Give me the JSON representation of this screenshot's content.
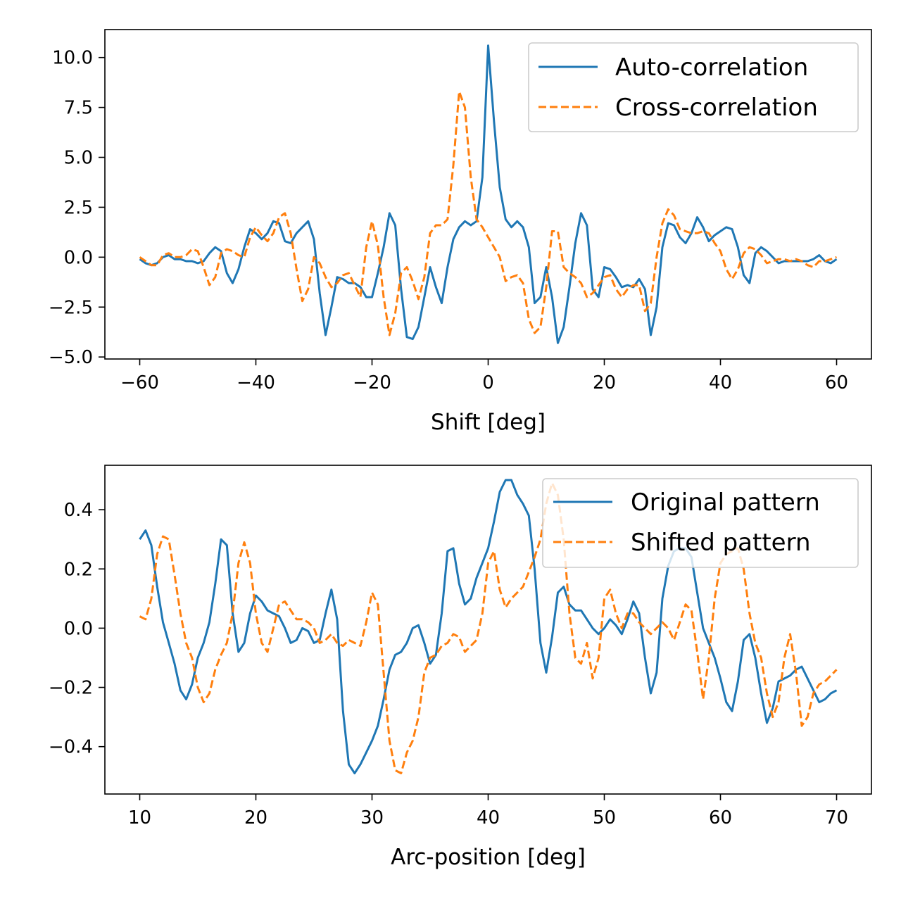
{
  "chart_data": [
    {
      "type": "line",
      "xlabel": "Shift [deg]",
      "ylabel": "",
      "xlim": [
        -66,
        66
      ],
      "ylim": [
        -5.1,
        11.4
      ],
      "xticks": [
        -60,
        -40,
        -20,
        0,
        20,
        40,
        60
      ],
      "xtick_labels": [
        "−60",
        "−40",
        "−20",
        "0",
        "20",
        "40",
        "60"
      ],
      "yticks": [
        -5.0,
        -2.5,
        0.0,
        2.5,
        5.0,
        7.5,
        10.0
      ],
      "ytick_labels": [
        "−5.0",
        "−2.5",
        "0.0",
        "2.5",
        "5.0",
        "7.5",
        "10.0"
      ],
      "grid": false,
      "legend": "top-right",
      "series": [
        {
          "name": "Auto-correlation",
          "color": "#1f77b4",
          "style": "solid",
          "x": [
            -60,
            -59,
            -58,
            -57,
            -56,
            -55,
            -54,
            -53,
            -52,
            -51,
            -50,
            -49,
            -48,
            -47,
            -46,
            -45,
            -44,
            -43,
            -42,
            -41,
            -40,
            -39,
            -38,
            -37,
            -36,
            -35,
            -34,
            -33,
            -32,
            -31,
            -30,
            -29,
            -28,
            -27,
            -26,
            -25,
            -24,
            -23,
            -22,
            -21,
            -20,
            -19,
            -18,
            -17,
            -16,
            -15,
            -14,
            -13,
            -12,
            -11,
            -10,
            -9,
            -8,
            -7,
            -6,
            -5,
            -4,
            -3,
            -2,
            -1,
            0,
            1,
            2,
            3,
            4,
            5,
            6,
            7,
            8,
            9,
            10,
            11,
            12,
            13,
            14,
            15,
            16,
            17,
            18,
            19,
            20,
            21,
            22,
            23,
            24,
            25,
            26,
            27,
            28,
            29,
            30,
            31,
            32,
            33,
            34,
            35,
            36,
            37,
            38,
            39,
            40,
            41,
            42,
            43,
            44,
            45,
            46,
            47,
            48,
            49,
            50,
            51,
            52,
            53,
            54,
            55,
            56,
            57,
            58,
            59,
            60
          ],
          "y": [
            -0.1,
            -0.3,
            -0.4,
            -0.3,
            0.0,
            0.1,
            -0.1,
            -0.1,
            -0.2,
            -0.2,
            -0.3,
            -0.2,
            0.2,
            0.5,
            0.3,
            -0.8,
            -1.3,
            -0.6,
            0.5,
            1.4,
            1.2,
            0.9,
            1.2,
            1.8,
            1.7,
            0.8,
            0.7,
            1.2,
            1.5,
            1.8,
            0.9,
            -1.8,
            -3.9,
            -2.5,
            -1.0,
            -1.1,
            -1.3,
            -1.3,
            -1.5,
            -2.0,
            -2.0,
            -0.8,
            0.5,
            2.2,
            1.6,
            -1.6,
            -4.0,
            -4.1,
            -3.5,
            -2.0,
            -0.5,
            -1.5,
            -2.3,
            -0.5,
            0.9,
            1.5,
            1.8,
            1.6,
            1.8,
            4.0,
            10.6,
            6.8,
            3.5,
            1.9,
            1.5,
            1.8,
            1.5,
            0.5,
            -2.3,
            -2.0,
            -0.5,
            -2.0,
            -4.3,
            -3.5,
            -1.5,
            0.7,
            2.2,
            1.6,
            -1.6,
            -2.0,
            -0.5,
            -0.6,
            -1.0,
            -1.5,
            -1.4,
            -1.5,
            -1.1,
            -1.6,
            -3.9,
            -2.5,
            0.5,
            1.7,
            1.6,
            1.0,
            0.7,
            1.2,
            2.0,
            1.5,
            0.8,
            1.1,
            1.3,
            1.5,
            1.4,
            0.5,
            -0.9,
            -1.3,
            0.2,
            0.5,
            0.3,
            0.0,
            -0.3,
            -0.2,
            -0.2,
            -0.2,
            -0.2,
            -0.2,
            -0.1,
            0.1,
            -0.2,
            -0.3,
            -0.1
          ]
        },
        {
          "name": "Cross-correlation",
          "color": "#ff7f0e",
          "style": "dashed",
          "x": [
            -60,
            -59,
            -58,
            -57,
            -56,
            -55,
            -54,
            -53,
            -52,
            -51,
            -50,
            -49,
            -48,
            -47,
            -46,
            -45,
            -44,
            -43,
            -42,
            -41,
            -40,
            -39,
            -38,
            -37,
            -36,
            -35,
            -34,
            -33,
            -32,
            -31,
            -30,
            -29,
            -28,
            -27,
            -26,
            -25,
            -24,
            -23,
            -22,
            -21,
            -20,
            -19,
            -18,
            -17,
            -16,
            -15,
            -14,
            -13,
            -12,
            -11,
            -10,
            -9,
            -8,
            -7,
            -6,
            -5,
            -4,
            -3,
            -2,
            -1,
            0,
            1,
            2,
            3,
            4,
            5,
            6,
            7,
            8,
            9,
            10,
            11,
            12,
            13,
            14,
            15,
            16,
            17,
            18,
            19,
            20,
            21,
            22,
            23,
            24,
            25,
            26,
            27,
            28,
            29,
            30,
            31,
            32,
            33,
            34,
            35,
            36,
            37,
            38,
            39,
            40,
            41,
            42,
            43,
            44,
            45,
            46,
            47,
            48,
            49,
            50,
            51,
            52,
            53,
            54,
            55,
            56,
            57,
            58,
            59,
            60
          ],
          "y": [
            0.0,
            -0.2,
            -0.4,
            -0.4,
            0.1,
            0.2,
            0.0,
            0.0,
            0.1,
            0.4,
            0.3,
            -0.5,
            -1.4,
            -1.0,
            0.2,
            0.4,
            0.3,
            0.1,
            0.0,
            1.0,
            1.5,
            1.1,
            0.8,
            1.2,
            2.0,
            2.2,
            1.2,
            -0.6,
            -2.2,
            -1.6,
            0.0,
            -0.3,
            -1.0,
            -1.5,
            -1.3,
            -0.9,
            -0.8,
            -1.4,
            -2.0,
            0.5,
            1.8,
            0.6,
            -2.0,
            -3.9,
            -2.8,
            -0.8,
            -0.5,
            -1.2,
            -2.1,
            -1.0,
            1.2,
            1.6,
            1.6,
            1.9,
            4.6,
            8.3,
            7.5,
            4.0,
            1.9,
            1.5,
            1.0,
            0.5,
            0.0,
            -1.2,
            -1.0,
            -0.9,
            -1.3,
            -3.1,
            -3.8,
            -3.5,
            -1.5,
            1.3,
            1.3,
            -0.5,
            -0.8,
            -1.0,
            -1.3,
            -2.0,
            -1.8,
            -1.4,
            -1.0,
            -0.9,
            -1.6,
            -2.0,
            -1.6,
            -1.4,
            -1.4,
            -2.7,
            -2.3,
            0.0,
            1.7,
            2.4,
            2.1,
            1.4,
            1.3,
            1.2,
            1.2,
            1.3,
            1.2,
            0.7,
            0.3,
            -0.6,
            -1.1,
            -0.6,
            0.2,
            0.5,
            0.4,
            0.1,
            -0.3,
            -0.2,
            -0.1,
            -0.1,
            -0.2,
            -0.1,
            -0.2,
            -0.4,
            -0.5,
            -0.2,
            -0.2,
            -0.1,
            0.0
          ]
        }
      ]
    },
    {
      "type": "line",
      "xlabel": "Arc-position [deg]",
      "ylabel": "",
      "xlim": [
        7,
        73
      ],
      "ylim": [
        -0.56,
        0.55
      ],
      "xticks": [
        10,
        20,
        30,
        40,
        50,
        60,
        70
      ],
      "xtick_labels": [
        "10",
        "20",
        "30",
        "40",
        "50",
        "60",
        "70"
      ],
      "yticks": [
        -0.4,
        -0.2,
        0.0,
        0.2,
        0.4
      ],
      "ytick_labels": [
        "−0.4",
        "−0.2",
        "0.0",
        "0.2",
        "0.4"
      ],
      "grid": false,
      "legend": "top-right",
      "series": [
        {
          "name": "Original pattern",
          "color": "#1f77b4",
          "style": "solid",
          "x": [
            10,
            10.5,
            11,
            11.5,
            12,
            12.5,
            13,
            13.5,
            14,
            14.5,
            15,
            15.5,
            16,
            16.5,
            17,
            17.5,
            18,
            18.5,
            19,
            19.5,
            20,
            20.5,
            21,
            21.5,
            22,
            22.5,
            23,
            23.5,
            24,
            24.5,
            25,
            25.5,
            26,
            26.5,
            27,
            27.5,
            28,
            28.5,
            29,
            29.5,
            30,
            30.5,
            31,
            31.5,
            32,
            32.5,
            33,
            33.5,
            34,
            34.5,
            35,
            35.5,
            36,
            36.5,
            37,
            37.5,
            38,
            38.5,
            39,
            39.5,
            40,
            40.5,
            41,
            41.5,
            42,
            42.5,
            43,
            43.5,
            44,
            44.5,
            45,
            45.5,
            46,
            46.5,
            47,
            47.5,
            48,
            48.5,
            49,
            49.5,
            50,
            50.5,
            51,
            51.5,
            52,
            52.5,
            53,
            53.5,
            54,
            54.5,
            55,
            55.5,
            56,
            56.5,
            57,
            57.5,
            58,
            58.5,
            59,
            59.5,
            60,
            60.5,
            61,
            61.5,
            62,
            62.5,
            63,
            63.5,
            64,
            64.5,
            65,
            65.5,
            66,
            66.5,
            67,
            67.5,
            68,
            68.5,
            69,
            69.5,
            70
          ],
          "y": [
            0.3,
            0.33,
            0.28,
            0.14,
            0.02,
            -0.05,
            -0.12,
            -0.21,
            -0.24,
            -0.19,
            -0.1,
            -0.05,
            0.02,
            0.15,
            0.3,
            0.28,
            0.05,
            -0.08,
            -0.05,
            0.05,
            0.11,
            0.09,
            0.06,
            0.05,
            0.04,
            0.0,
            -0.05,
            -0.04,
            0.0,
            -0.01,
            -0.05,
            -0.04,
            0.05,
            0.13,
            0.03,
            -0.28,
            -0.46,
            -0.49,
            -0.46,
            -0.42,
            -0.38,
            -0.33,
            -0.24,
            -0.14,
            -0.09,
            -0.08,
            -0.05,
            0.0,
            0.01,
            -0.05,
            -0.12,
            -0.09,
            0.05,
            0.26,
            0.27,
            0.15,
            0.08,
            0.1,
            0.17,
            0.22,
            0.27,
            0.36,
            0.46,
            0.5,
            0.5,
            0.45,
            0.42,
            0.38,
            0.2,
            -0.05,
            -0.15,
            -0.03,
            0.12,
            0.14,
            0.08,
            0.06,
            0.06,
            0.03,
            0.0,
            -0.02,
            0.0,
            0.03,
            0.01,
            -0.02,
            0.03,
            0.09,
            0.05,
            -0.1,
            -0.22,
            -0.15,
            0.1,
            0.21,
            0.26,
            0.27,
            0.27,
            0.24,
            0.12,
            0.0,
            -0.05,
            -0.1,
            -0.17,
            -0.25,
            -0.28,
            -0.18,
            -0.04,
            -0.02,
            -0.1,
            -0.22,
            -0.32,
            -0.27,
            -0.18,
            -0.17,
            -0.16,
            -0.14,
            -0.13,
            -0.17,
            -0.21,
            -0.25,
            -0.24,
            -0.22,
            -0.21
          ]
        },
        {
          "name": "Shifted pattern",
          "color": "#ff7f0e",
          "style": "dashed",
          "x": [
            10,
            10.5,
            11,
            11.5,
            12,
            12.5,
            13,
            13.5,
            14,
            14.5,
            15,
            15.5,
            16,
            16.5,
            17,
            17.5,
            18,
            18.5,
            19,
            19.5,
            20,
            20.5,
            21,
            21.5,
            22,
            22.5,
            23,
            23.5,
            24,
            24.5,
            25,
            25.5,
            26,
            26.5,
            27,
            27.5,
            28,
            28.5,
            29,
            29.5,
            30,
            30.5,
            31,
            31.5,
            32,
            32.5,
            33,
            33.5,
            34,
            34.5,
            35,
            35.5,
            36,
            36.5,
            37,
            37.5,
            38,
            38.5,
            39,
            39.5,
            40,
            40.5,
            41,
            41.5,
            42,
            42.5,
            43,
            43.5,
            44,
            44.5,
            45,
            45.5,
            46,
            46.5,
            47,
            47.5,
            48,
            48.5,
            49,
            49.5,
            50,
            50.5,
            51,
            51.5,
            52,
            52.5,
            53,
            53.5,
            54,
            54.5,
            55,
            55.5,
            56,
            56.5,
            57,
            57.5,
            58,
            58.5,
            59,
            59.5,
            60,
            60.5,
            61,
            61.5,
            62,
            62.5,
            63,
            63.5,
            64,
            64.5,
            65,
            65.5,
            66,
            66.5,
            67,
            67.5,
            68,
            68.5,
            69,
            69.5,
            70
          ],
          "y": [
            0.04,
            0.03,
            0.1,
            0.25,
            0.31,
            0.3,
            0.18,
            0.05,
            -0.05,
            -0.1,
            -0.2,
            -0.25,
            -0.22,
            -0.14,
            -0.09,
            -0.05,
            0.05,
            0.22,
            0.29,
            0.22,
            0.05,
            -0.05,
            -0.08,
            0.0,
            0.08,
            0.09,
            0.06,
            0.03,
            0.03,
            0.02,
            0.0,
            -0.05,
            -0.04,
            -0.02,
            -0.05,
            -0.06,
            -0.04,
            -0.05,
            -0.06,
            0.02,
            0.12,
            0.08,
            -0.15,
            -0.38,
            -0.48,
            -0.49,
            -0.42,
            -0.38,
            -0.3,
            -0.15,
            -0.1,
            -0.09,
            -0.06,
            -0.05,
            -0.02,
            -0.03,
            -0.08,
            -0.06,
            -0.04,
            0.05,
            0.22,
            0.26,
            0.13,
            0.07,
            0.1,
            0.12,
            0.14,
            0.19,
            0.24,
            0.3,
            0.42,
            0.49,
            0.45,
            0.3,
            0.05,
            -0.1,
            -0.12,
            -0.05,
            -0.17,
            -0.1,
            0.1,
            0.13,
            0.05,
            0.0,
            0.05,
            0.05,
            0.02,
            0.0,
            -0.02,
            0.0,
            0.02,
            0.0,
            -0.04,
            0.02,
            0.08,
            0.06,
            -0.08,
            -0.24,
            -0.1,
            0.1,
            0.22,
            0.25,
            0.26,
            0.27,
            0.2,
            0.05,
            -0.05,
            -0.1,
            -0.22,
            -0.3,
            -0.25,
            -0.1,
            -0.02,
            -0.15,
            -0.33,
            -0.3,
            -0.22,
            -0.19,
            -0.18,
            -0.16,
            -0.14
          ]
        }
      ]
    }
  ]
}
